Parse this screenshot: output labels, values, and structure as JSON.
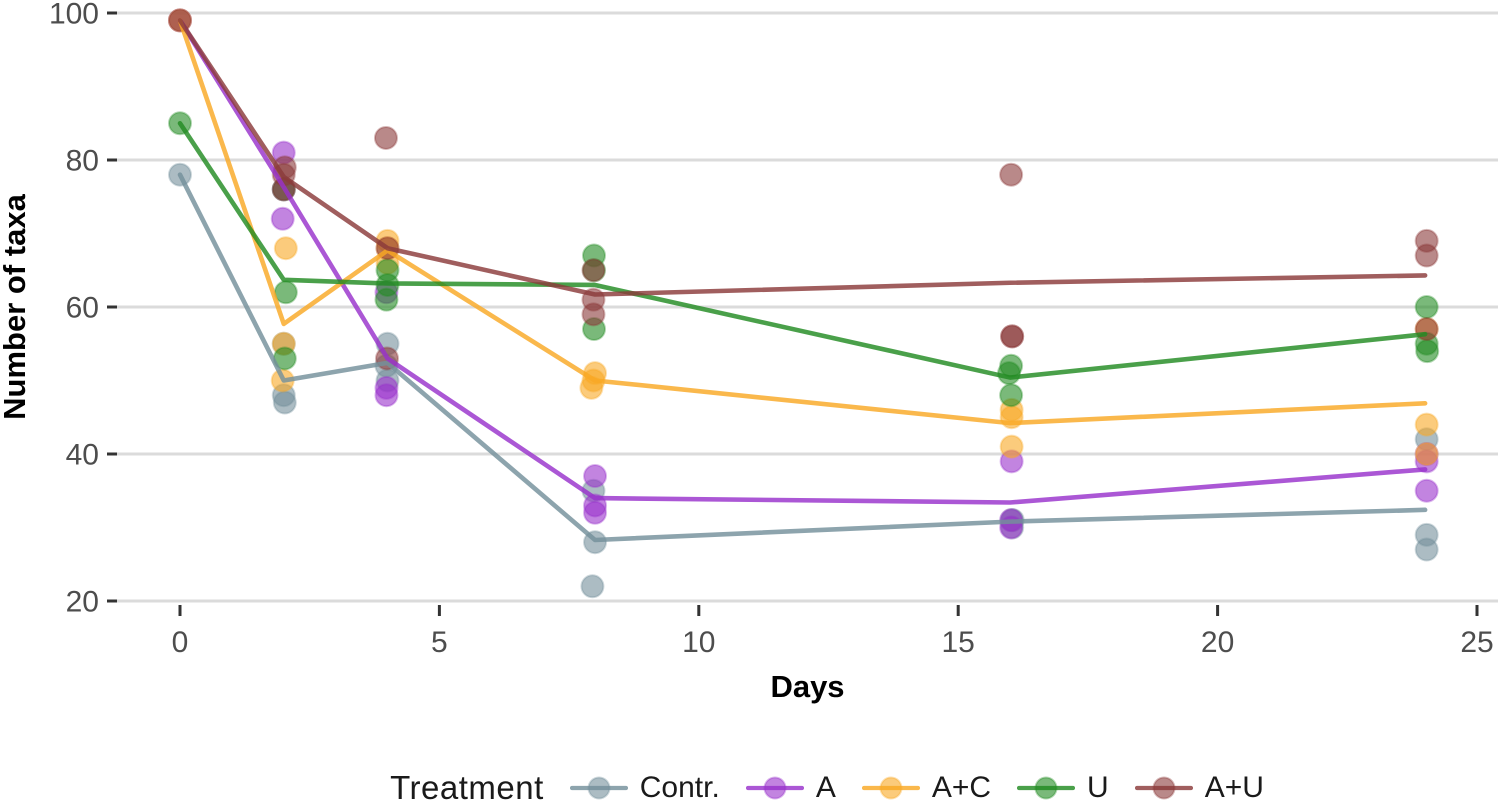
{
  "figure": {
    "background": "#ffffff",
    "panel": {
      "grid_color": "#DBDBDB",
      "tick_color": "#333333",
      "tick_label_color": "#4D4D4D",
      "axis_title_color": "#000000"
    }
  },
  "chart_data": {
    "type": "scatter+line",
    "title": "",
    "xlabel": "Days",
    "ylabel": "Number of taxa",
    "x_ticks": [
      0,
      5,
      10,
      15,
      20,
      25
    ],
    "x_tick_labels": [
      "0",
      "5",
      "10",
      "15",
      "20",
      "25"
    ],
    "y_ticks": [
      20,
      40,
      60,
      80,
      100
    ],
    "y_tick_labels": [
      "20",
      "40",
      "60",
      "80",
      "100"
    ],
    "xlim": [
      0,
      25
    ],
    "ylim": [
      20,
      100
    ],
    "grid": "horizontal-major-only",
    "legend": {
      "title": "Treatment",
      "position": "bottom",
      "entries": [
        "Contr.",
        "A",
        "A+C",
        "U",
        "A+U"
      ]
    },
    "line_days": [
      0,
      2,
      4,
      8,
      16,
      24
    ],
    "series": [
      {
        "name": "Contr.",
        "color": "#74909B",
        "line_means": [
          78,
          50,
          52.4,
          28.3,
          30.8,
          32.4
        ],
        "points": [
          [
            0,
            78
          ],
          [
            2,
            55
          ],
          [
            2,
            48
          ],
          [
            2.02,
            47
          ],
          [
            4,
            55
          ],
          [
            3.98,
            52
          ],
          [
            4,
            50
          ],
          [
            7.97,
            35
          ],
          [
            8,
            28
          ],
          [
            7.95,
            22
          ],
          [
            16.03,
            31
          ],
          [
            16.05,
            31
          ],
          [
            16.04,
            30
          ],
          [
            24.03,
            42
          ],
          [
            24.03,
            29
          ],
          [
            24.03,
            27
          ]
        ]
      },
      {
        "name": "A",
        "color": "#9932CC",
        "line_means": [
          99,
          76.3,
          53,
          34,
          33.4,
          37.9
        ],
        "points": [
          [
            0,
            99
          ],
          [
            2,
            81
          ],
          [
            2,
            76
          ],
          [
            1.98,
            72
          ],
          [
            3.98,
            62
          ],
          [
            3.98,
            49
          ],
          [
            3.98,
            48
          ],
          [
            8,
            37
          ],
          [
            8,
            33
          ],
          [
            8,
            32
          ],
          [
            16.03,
            39
          ],
          [
            16.02,
            31
          ],
          [
            16.02,
            30
          ],
          [
            24.03,
            40
          ],
          [
            24.03,
            39
          ],
          [
            24.03,
            35
          ]
        ]
      },
      {
        "name": "A+C",
        "color": "#F9A825",
        "line_means": [
          99,
          57.7,
          67.7,
          50,
          44.2,
          46.9
        ],
        "points": [
          [
            0,
            99
          ],
          [
            2.04,
            68
          ],
          [
            2,
            55
          ],
          [
            1.98,
            50
          ],
          [
            4,
            69
          ],
          [
            4,
            68
          ],
          [
            4,
            66
          ],
          [
            8,
            51
          ],
          [
            7.97,
            50
          ],
          [
            7.93,
            49
          ],
          [
            16.03,
            46
          ],
          [
            16.03,
            45
          ],
          [
            16.03,
            41
          ],
          [
            24.03,
            57
          ],
          [
            24.03,
            44
          ],
          [
            24.03,
            40
          ]
        ]
      },
      {
        "name": "U",
        "color": "#228B22",
        "line_means": [
          85,
          63.7,
          63.2,
          63,
          50.4,
          56.3
        ],
        "points": [
          [
            0,
            85
          ],
          [
            2,
            76
          ],
          [
            2.04,
            62
          ],
          [
            2.02,
            53
          ],
          [
            4,
            65
          ],
          [
            4,
            63
          ],
          [
            3.98,
            61
          ],
          [
            7.98,
            67
          ],
          [
            7.98,
            65
          ],
          [
            7.98,
            57
          ],
          [
            16.02,
            52
          ],
          [
            15.98,
            51
          ],
          [
            16.02,
            48
          ],
          [
            24.03,
            60
          ],
          [
            24.03,
            55
          ],
          [
            24.04,
            54
          ]
        ]
      },
      {
        "name": "A+U",
        "color": "#8B3A3A",
        "line_means": [
          99,
          77.7,
          68,
          61.7,
          63.3,
          64.3
        ],
        "points": [
          [
            0,
            99
          ],
          [
            2.02,
            79
          ],
          [
            2,
            78
          ],
          [
            2,
            76
          ],
          [
            3.97,
            83
          ],
          [
            4,
            68
          ],
          [
            3.99,
            53
          ],
          [
            7.97,
            65
          ],
          [
            7.97,
            61
          ],
          [
            7.97,
            59
          ],
          [
            16.02,
            78
          ],
          [
            16.04,
            56
          ],
          [
            16.04,
            56
          ],
          [
            24.03,
            69
          ],
          [
            24.03,
            67
          ],
          [
            24.03,
            57
          ]
        ]
      }
    ]
  }
}
